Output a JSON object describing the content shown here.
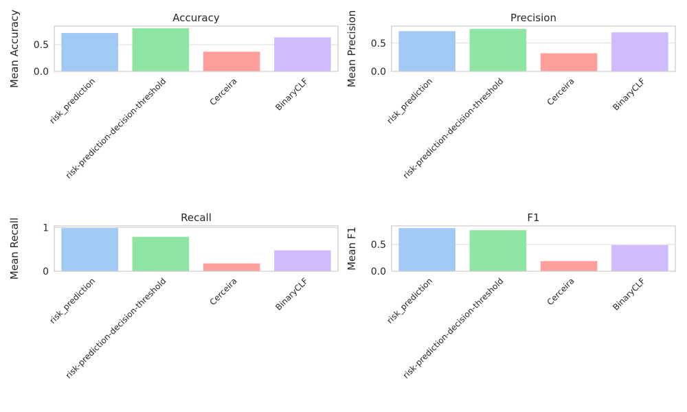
{
  "chart_data": [
    {
      "type": "bar",
      "title": "Accuracy",
      "xlabel": "",
      "ylabel": "Mean Accuracy",
      "categories": [
        "risk_prediction",
        "risk-prediction-decision-threshold",
        "Cerceira",
        "BinaryCLF"
      ],
      "values": [
        0.72,
        0.81,
        0.37,
        0.64
      ],
      "ylim": [
        0,
        0.85
      ],
      "yticks": [
        0.0,
        0.5
      ],
      "ytick_labels": [
        "0.0",
        "0.5"
      ],
      "grid": true
    },
    {
      "type": "bar",
      "title": "Precision",
      "xlabel": "",
      "ylabel": "Mean Precision",
      "categories": [
        "risk_prediction",
        "risk-prediction-decision-threshold",
        "Cerceira",
        "BinaryCLF"
      ],
      "values": [
        0.71,
        0.75,
        0.32,
        0.69
      ],
      "ylim": [
        0,
        0.8
      ],
      "yticks": [
        0.0,
        0.5
      ],
      "ytick_labels": [
        "0.0",
        "0.5"
      ],
      "grid": true
    },
    {
      "type": "bar",
      "title": "Recall",
      "xlabel": "",
      "ylabel": "Mean Recall",
      "categories": [
        "risk_prediction",
        "risk-prediction-decision-threshold",
        "Cerceira",
        "BinaryCLF"
      ],
      "values": [
        0.99,
        0.79,
        0.18,
        0.48
      ],
      "ylim": [
        0,
        1.04
      ],
      "yticks": [
        0,
        1
      ],
      "ytick_labels": [
        "0",
        "1"
      ],
      "grid": true
    },
    {
      "type": "bar",
      "title": "F1",
      "xlabel": "",
      "ylabel": "Mean F1",
      "categories": [
        "risk_prediction",
        "risk-prediction-decision-threshold",
        "Cerceira",
        "BinaryCLF"
      ],
      "values": [
        0.81,
        0.77,
        0.19,
        0.49
      ],
      "ylim": [
        0,
        0.85
      ],
      "yticks": [
        0.0,
        0.5
      ],
      "ytick_labels": [
        "0.0",
        "0.5"
      ],
      "grid": true
    }
  ],
  "colors": {
    "bars": [
      "#a1c9f4",
      "#8de5a1",
      "#ff9f9b",
      "#d0bbff"
    ],
    "grid": "#d9d9d9",
    "spine": "#cccccc"
  }
}
